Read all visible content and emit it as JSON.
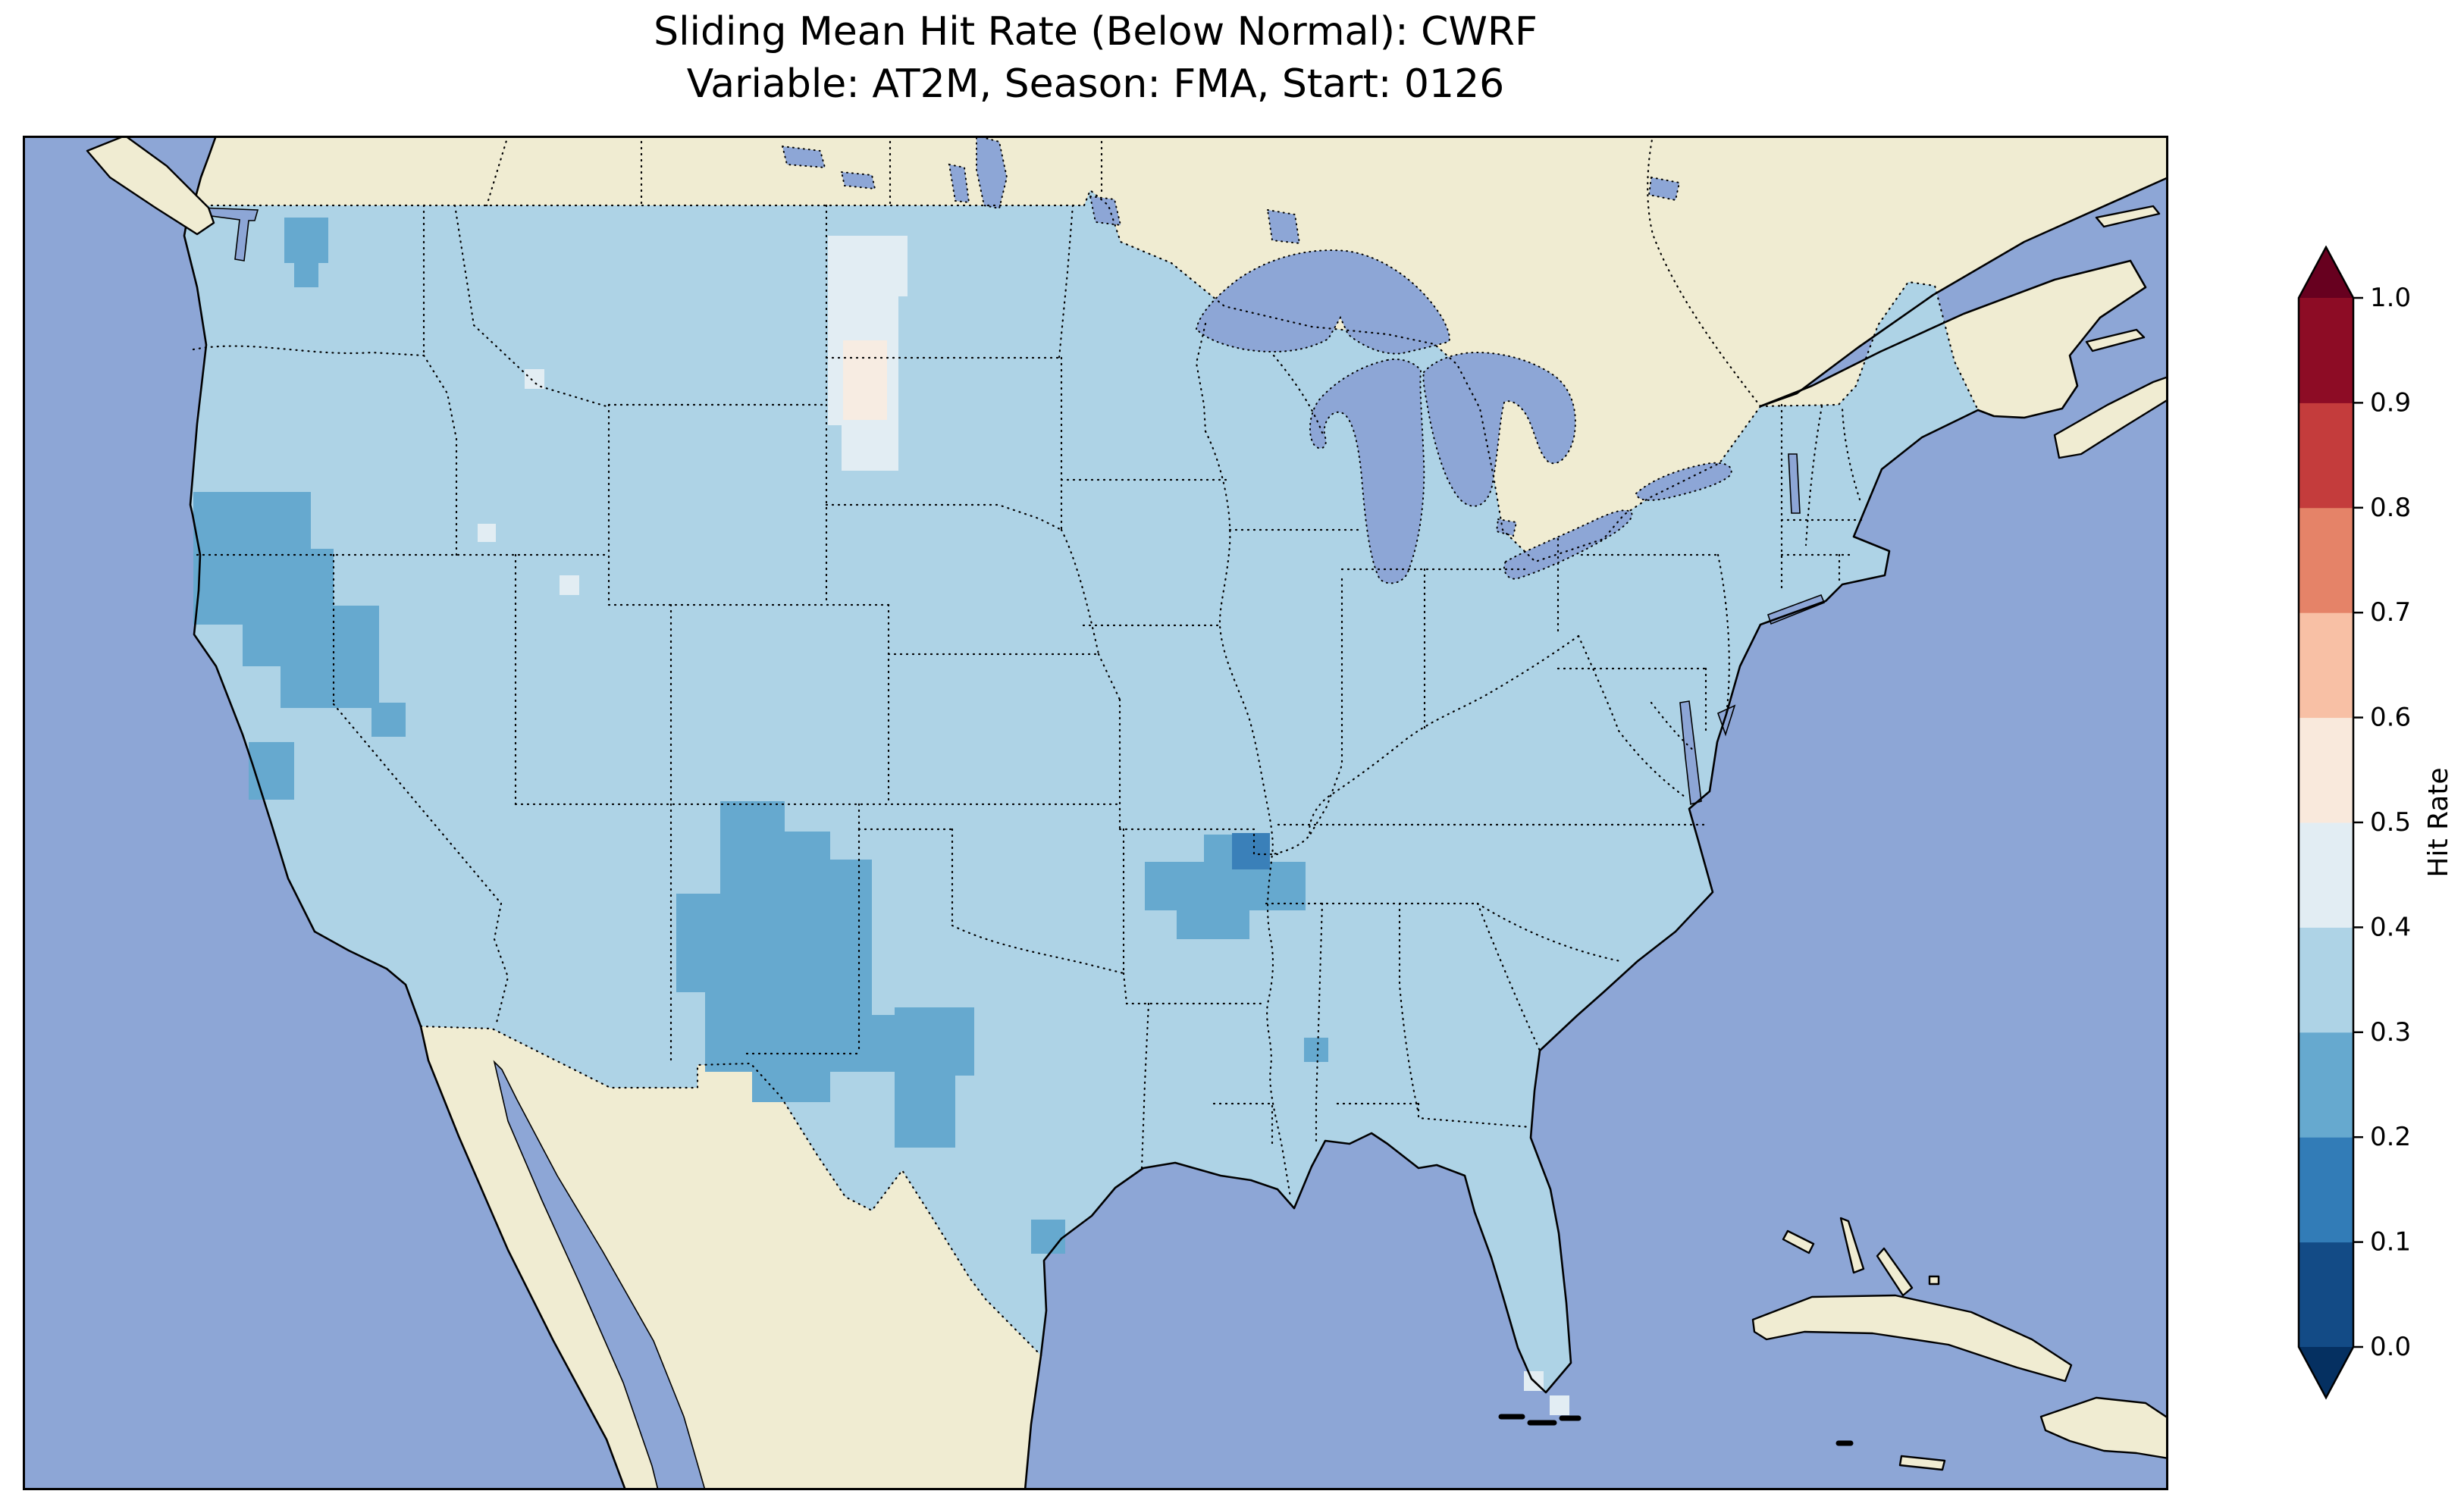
{
  "title": {
    "line1": "Sliding Mean Hit Rate (Below Normal): CWRF",
    "line2": "Variable: AT2M, Season: FMA, Start: 0126"
  },
  "colorbar": {
    "label": "Hit Rate",
    "ticks": [
      "0.0",
      "0.1",
      "0.2",
      "0.3",
      "0.4",
      "0.5",
      "0.6",
      "0.7",
      "0.8",
      "0.9",
      "1.0"
    ],
    "bin_colors": [
      "#134b86",
      "#327cb7",
      "#66a9cf",
      "#aed3e6",
      "#e2edf3",
      "#f9e9dc",
      "#f8c0a5",
      "#e58368",
      "#c43c3c",
      "#8d0c25"
    ],
    "under_color": "#053061",
    "over_color": "#67001f"
  },
  "map": {
    "colors": {
      "ocean": "#8da6d6",
      "lake": "#8da6d6",
      "land": "#f0ecd2",
      "field": "#aed3e6",
      "bin_01_02": "#3a80b9",
      "bin_02_03": "#66a9cf",
      "bin_04_05": "#e2edf3",
      "bin_05_06": "#f7ece2"
    }
  },
  "chart_data": {
    "type": "heatmap",
    "title": "Sliding Mean Hit Rate (Below Normal): CWRF",
    "subtitle": "Variable: AT2M, Season: FMA, Start: 0126",
    "metric": "Sliding Mean Hit Rate (Below Normal)",
    "model": "CWRF",
    "variable": "AT2M",
    "season": "FMA",
    "start": "0126",
    "extent": "Contiguous United States with surrounding Canada, Mexico, Gulf of Mexico, Great Lakes and western Atlantic",
    "colorbar": {
      "label": "Hit Rate",
      "range": [
        0.0,
        1.0
      ],
      "bin_width": 0.1,
      "ticks": [
        0.0,
        0.1,
        0.2,
        0.3,
        0.4,
        0.5,
        0.6,
        0.7,
        0.8,
        0.9,
        1.0
      ],
      "colormap": "RdBu_r, 10 discrete bins, extended triangles both ends",
      "legend_position": "right"
    },
    "grid_on": false,
    "dominant_bin": [
      0.3,
      0.4
    ],
    "max_bin_present": [
      0.5,
      0.6
    ],
    "regions": [
      {
        "area": "Most of the contiguous United States",
        "hit_rate": [
          0.3,
          0.4
        ]
      },
      {
        "area": "Eastern New Mexico and western Texas panhandle (large blob)",
        "hit_rate": [
          0.2,
          0.3
        ]
      },
      {
        "area": "West-central Texas (second blob southeast of the first)",
        "hit_rate": [
          0.2,
          0.3
        ]
      },
      {
        "area": "Central Arkansas",
        "hit_rate": [
          0.2,
          0.3
        ]
      },
      {
        "area": "Small core inside northern Arkansas patch",
        "hit_rate": [
          0.1,
          0.2
        ]
      },
      {
        "area": "Northern inland California into west-central Nevada",
        "hit_rate": [
          0.2,
          0.3
        ]
      },
      {
        "area": "Central California coast",
        "hit_rate": [
          0.2,
          0.3
        ]
      },
      {
        "area": "Northwestern Washington",
        "hit_rate": [
          0.2,
          0.3
        ]
      },
      {
        "area": "Single cells: eastern Mississippi, south Texas coast, west Nevada",
        "hit_rate": [
          0.2,
          0.3
        ]
      },
      {
        "area": "West-central North Dakota patch",
        "hit_rate": [
          0.4,
          0.5
        ]
      },
      {
        "area": "Core of North Dakota patch",
        "hit_rate": [
          0.5,
          0.6
        ]
      },
      {
        "area": "Scattered pale cells: western Montana, northern Utah, southern Idaho, south Florida coast",
        "hit_rate": [
          0.4,
          0.5
        ]
      }
    ],
    "note": "No grid cells exceed 0.6; no red bins appear on the map."
  }
}
